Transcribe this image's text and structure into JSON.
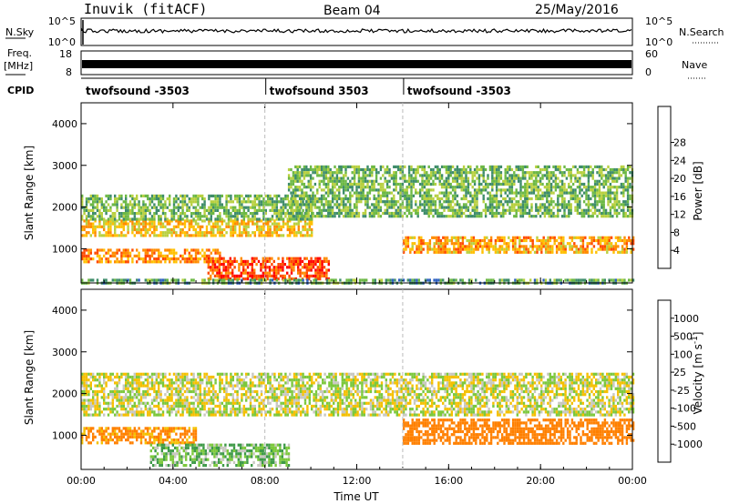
{
  "header": {
    "station": "Inuvik (fitACF)",
    "beam": "Beam 04",
    "date": "25/May/2016"
  },
  "status": {
    "nsky_label": "N.Sky",
    "nsky_ticks": [
      "10^5",
      "10^0"
    ],
    "nsearch_label": "N.Search",
    "nsearch_ticks": [
      "10^5",
      "10^0"
    ],
    "freq_label": "Freq.",
    "freq_unit": "[MHz]",
    "freq_ticks": [
      "18",
      "8"
    ],
    "nave_label": "Nave",
    "nave_ticks": [
      "60",
      "0"
    ],
    "cpid_label": "CPID",
    "cpid_segments": [
      {
        "name": "twofsound -3503",
        "start_hour": 0
      },
      {
        "name": "twofsound 3503",
        "start_hour": 8
      },
      {
        "name": "twofsound -3503",
        "start_hour": 14
      }
    ]
  },
  "chart_data": [
    {
      "type": "heatmap",
      "parameter": "power",
      "ylabel": "Slant Range [km]",
      "xlim_hours": [
        0,
        24
      ],
      "ylim": [
        180,
        4500
      ],
      "yticks": [
        "1000",
        "2000",
        "3000",
        "4000"
      ],
      "colorbar": {
        "label": "Power [dB]",
        "ticks": [
          "4",
          "8",
          "12",
          "16",
          "20",
          "24",
          "28"
        ],
        "colors": [
          "#1430f0",
          "#2d60c0",
          "#3e8c6a",
          "#6cb845",
          "#b8d040",
          "#ffc000",
          "#ff8c00",
          "#ff4a00",
          "#ff0000"
        ]
      },
      "echo_regions": [
        {
          "t0": 0.0,
          "t1": 10.0,
          "r0": 1300,
          "r1": 1700,
          "level": 20
        },
        {
          "t0": 0.0,
          "t1": 10.0,
          "r0": 1700,
          "r1": 2300,
          "level": 12
        },
        {
          "t0": 5.5,
          "t1": 10.8,
          "r0": 250,
          "r1": 800,
          "level": 28
        },
        {
          "t0": 0.0,
          "t1": 6.0,
          "r0": 700,
          "r1": 1000,
          "level": 24
        },
        {
          "t0": 9.0,
          "t1": 24.0,
          "r0": 1800,
          "r1": 3000,
          "level": 12
        },
        {
          "t0": 14.0,
          "t1": 24.0,
          "r0": 900,
          "r1": 1300,
          "level": 22
        },
        {
          "t0": 0.0,
          "t1": 24.0,
          "r0": 180,
          "r1": 280,
          "level": 10
        }
      ]
    },
    {
      "type": "heatmap",
      "parameter": "velocity",
      "ylabel": "Slant Range [km]",
      "xlabel": "Time UT",
      "xlim_hours": [
        0,
        24
      ],
      "xticks": [
        "00:00",
        "04:00",
        "08:00",
        "12:00",
        "16:00",
        "20:00",
        "00:00"
      ],
      "ylim": [
        180,
        4500
      ],
      "yticks": [
        "1000",
        "2000",
        "3000",
        "4000"
      ],
      "colorbar": {
        "label": "Velocity [m s",
        "label_superscript": "-1",
        "label_close": "]",
        "ticks": [
          "1000",
          "500",
          "100",
          "25",
          "-25",
          "-100",
          "-500",
          "-1000"
        ],
        "colors": [
          "#1838c8",
          "#3a7ab8",
          "#3e9a48",
          "#7cc83c",
          "#c8c8c0",
          "#f5c000",
          "#ff8000",
          "#ff4000",
          "#ff0000"
        ]
      },
      "echo_regions": [
        {
          "t0": 0.0,
          "t1": 24.0,
          "r0": 1500,
          "r1": 2500,
          "velocity": 0
        },
        {
          "t0": 14.0,
          "t1": 24.0,
          "r0": 800,
          "r1": 1400,
          "velocity": -400
        },
        {
          "t0": 0.0,
          "t1": 5.0,
          "r0": 800,
          "r1": 1200,
          "velocity": -150
        },
        {
          "t0": 3.0,
          "t1": 9.0,
          "r0": 250,
          "r1": 800,
          "velocity": 80
        }
      ]
    }
  ]
}
